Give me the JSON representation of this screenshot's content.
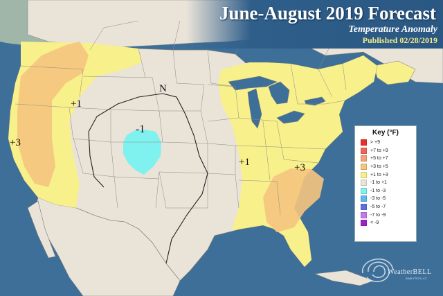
{
  "header": {
    "title": "June-August 2019 Forecast",
    "subtitle": "Temperature Anomaly",
    "published": "Published 02/28/2019"
  },
  "map": {
    "ocean_color": "#3d6f98",
    "land_color": "#e9e3d8",
    "anomaly_labels": [
      {
        "id": "pacific",
        "text": "+3"
      },
      {
        "id": "northwest",
        "text": "+1"
      },
      {
        "id": "rockies",
        "text": "-1"
      },
      {
        "id": "north-marker",
        "text": "N"
      },
      {
        "id": "midwest",
        "text": "+1"
      },
      {
        "id": "southeast",
        "text": "+3"
      }
    ]
  },
  "legend": {
    "title": "Key (°F)",
    "items": [
      {
        "label": "> +9",
        "color": "#e8302a"
      },
      {
        "label": "+7 to +9",
        "color": "#f0655a"
      },
      {
        "label": "+5 to +7",
        "color": "#f4a27a"
      },
      {
        "label": "+3 to +5",
        "color": "#f5c47e"
      },
      {
        "label": "+1 to +3",
        "color": "#f8f08a"
      },
      {
        "label": "-1 to +1",
        "color": "#e9e3d8"
      },
      {
        "label": "-1 to -3",
        "color": "#7ff1ee"
      },
      {
        "label": "-3 to -5",
        "color": "#5fb8ee"
      },
      {
        "label": "-5 to -7",
        "color": "#5f6fe0"
      },
      {
        "label": "-7 to -9",
        "color": "#c479ea"
      },
      {
        "label": "< -9",
        "color": "#a020c8"
      }
    ]
  },
  "logo": {
    "name": "WeatherBELL",
    "tagline": "ANALYTICS LLC"
  }
}
